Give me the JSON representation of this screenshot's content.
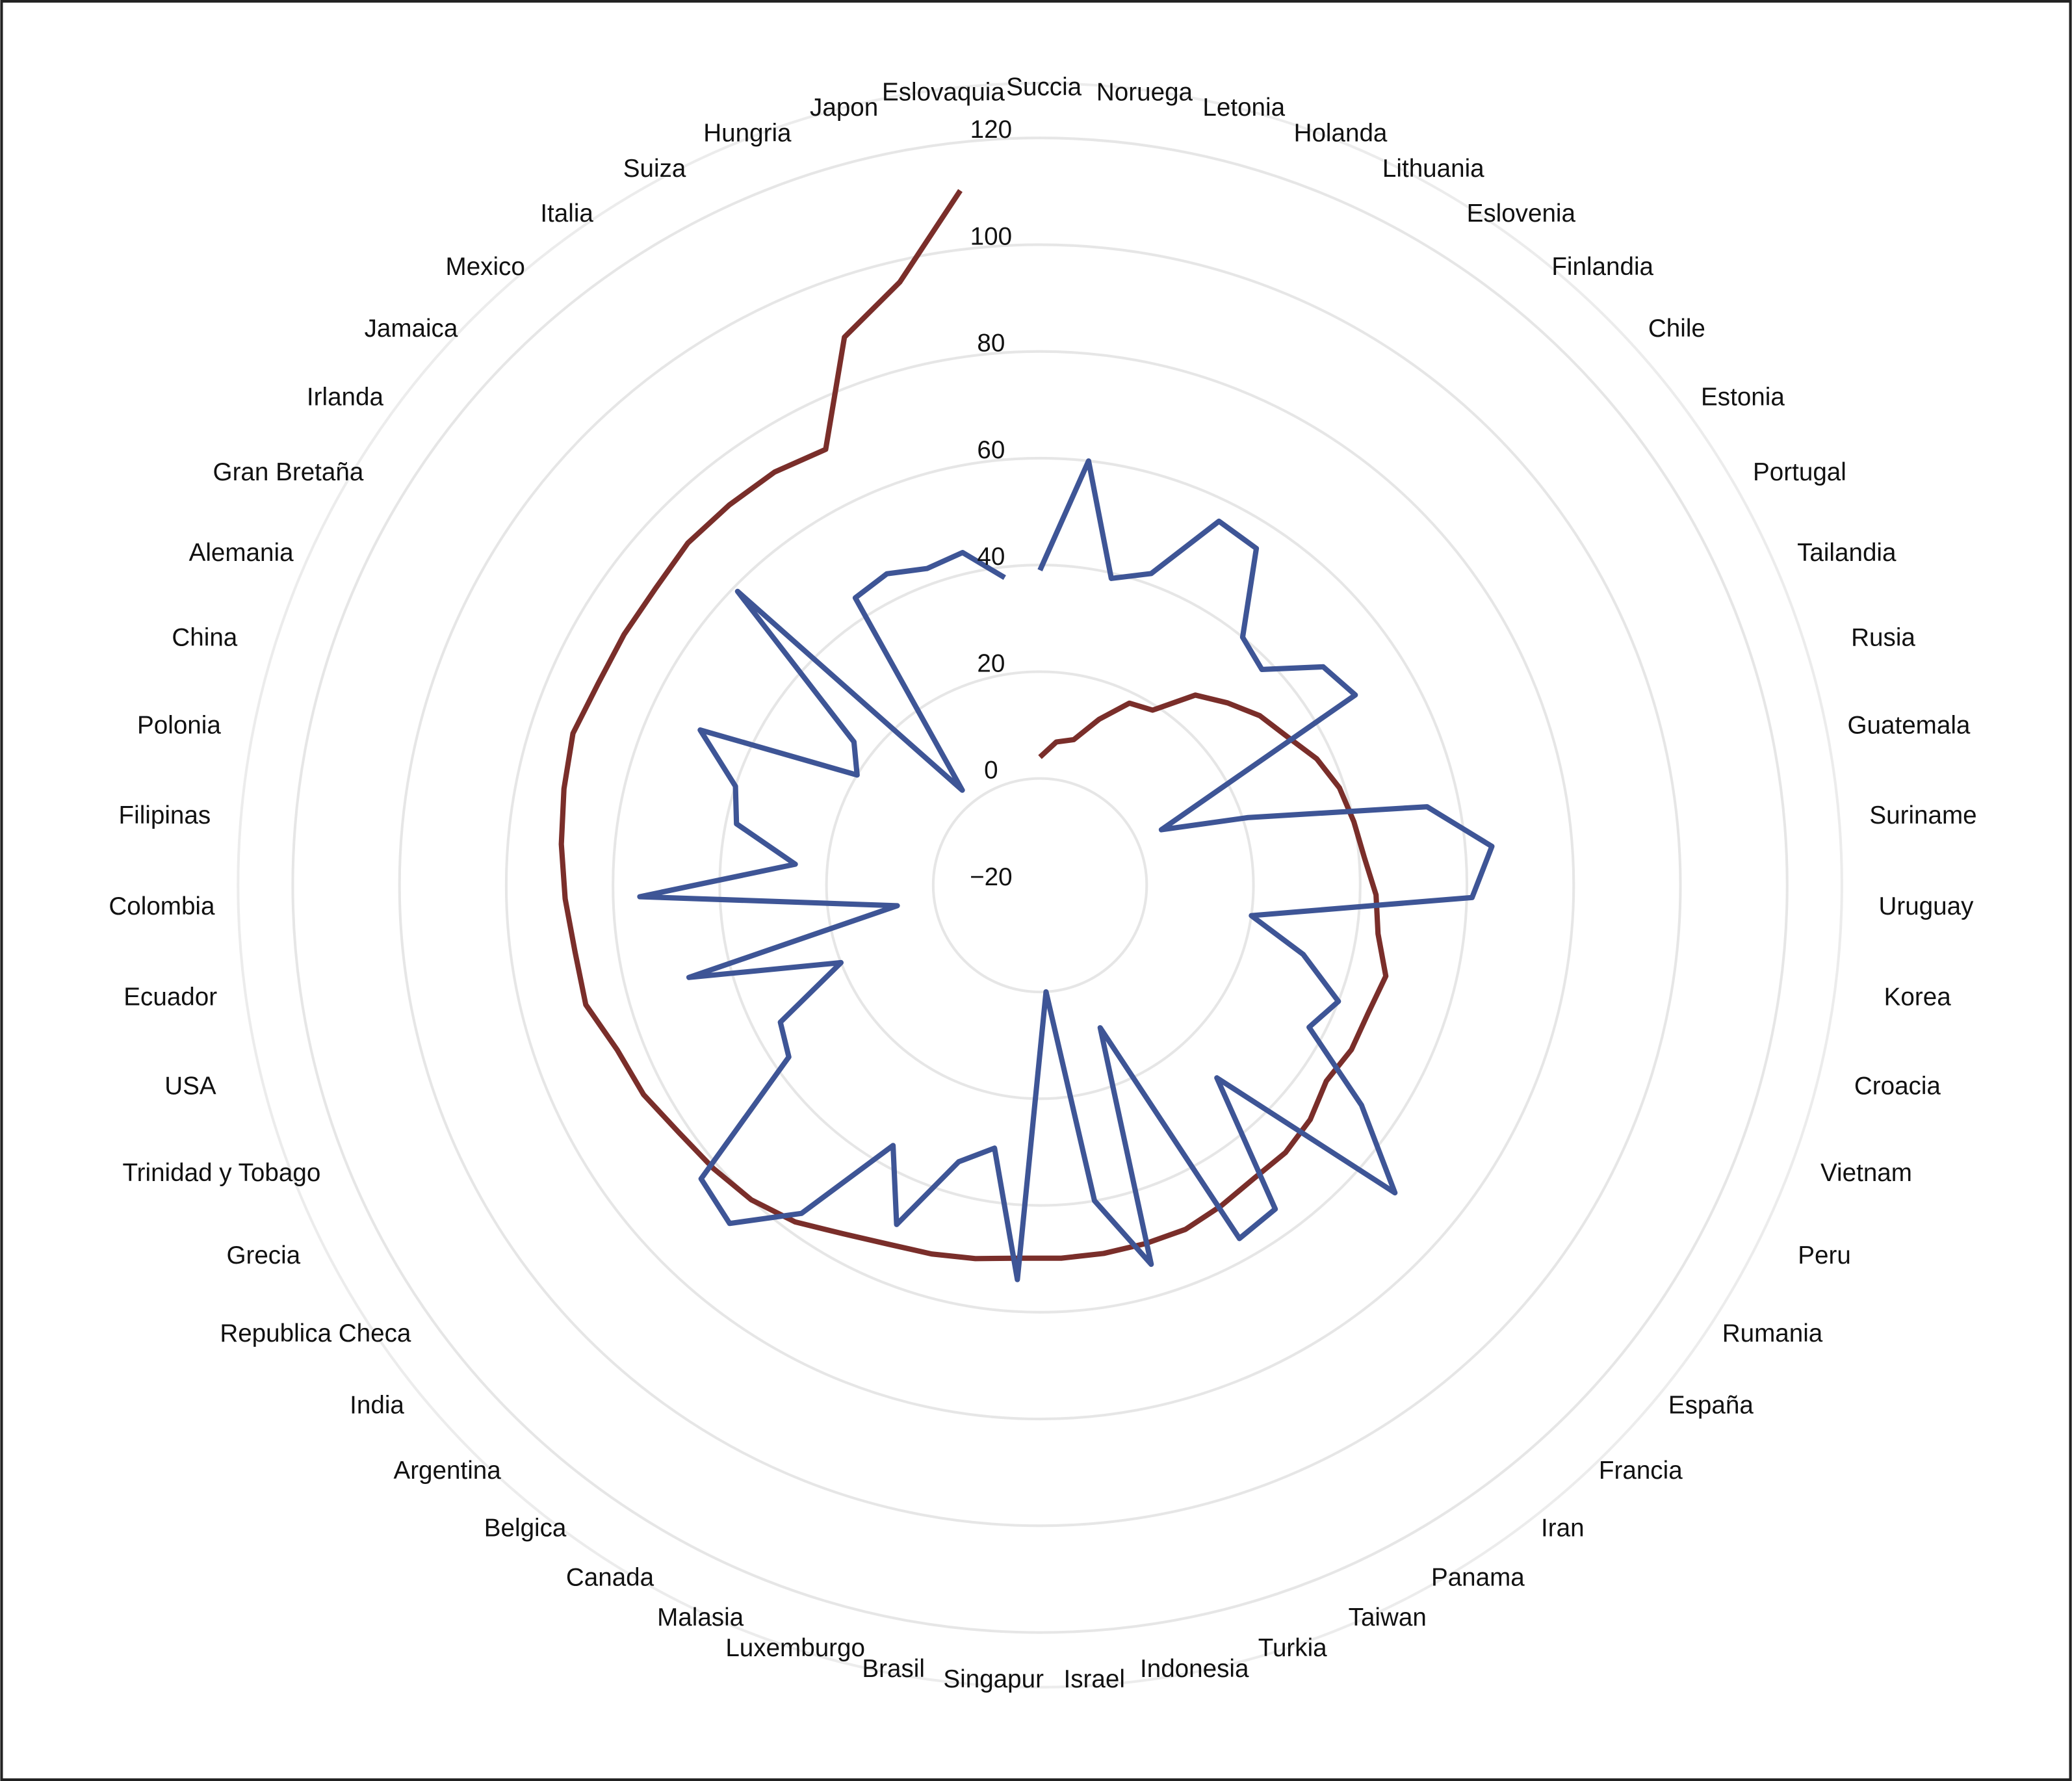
{
  "chart_data": {
    "type": "radar",
    "categories": [
      "Succia",
      "Noruega",
      "Letonia",
      "Holanda",
      "Lithuania",
      "Eslovenia",
      "Finlandia",
      "Chile",
      "Estonia",
      "Portugal",
      "Tailandia",
      "Rusia",
      "Guatemala",
      "Suriname",
      "Uruguay",
      "Korea",
      "Croacia",
      "Vietnam",
      "Peru",
      "Rumania",
      "España",
      "Francia",
      "Iran",
      "Panama",
      "Taiwan",
      "Turkia",
      "Indonesia",
      "Israel",
      "Singapur",
      "Brasil",
      "Luxemburgo",
      "Malasia",
      "Canada",
      "Belgica",
      "Argentina",
      "India",
      "Republica Checa",
      "Grecia",
      "Trinidad y Tobago",
      "USA",
      "Ecuador",
      "Colombia",
      "Filipinas",
      "Polonia",
      "China",
      "Alemania",
      "Gran Bretaña",
      "Irlanda",
      "Jamaica",
      "Mexico",
      "Italia",
      "Suiza",
      "Hungria",
      "Japon",
      "Eslovaquia"
    ],
    "series": [
      {
        "color": "#7a2e2a",
        "values": [
          4,
          7,
          8,
          13,
          18,
          19,
          26,
          29,
          32,
          34,
          37,
          39,
          40,
          41,
          43,
          44,
          47,
          46,
          46,
          45,
          47,
          48,
          48,
          49,
          50,
          50,
          50,
          50,
          50,
          51,
          52,
          53,
          55,
          58,
          60,
          61,
          62,
          64,
          65,
          68,
          68,
          69,
          70,
          71,
          72,
          71,
          71,
          71,
          72,
          72,
          72,
          71,
          89,
          96,
          111
        ]
      },
      {
        "color": "#3e5596",
        "values": [
          39,
          60,
          39,
          42,
          56,
          55,
          40,
          38,
          47,
          49,
          5,
          21,
          54,
          65,
          61,
          20,
          31,
          40,
          37,
          53,
          68,
          29,
          55,
          56,
          9,
          54,
          40,
          0,
          54,
          30,
          34,
          49,
          36,
          56,
          66,
          64,
          37,
          35,
          20,
          48,
          7,
          55,
          26,
          38,
          40,
          50,
          20,
          24,
          59,
          3,
          44,
          45,
          43,
          44,
          38
        ]
      }
    ],
    "ylim": [
      -20,
      120
    ],
    "yticks": [
      {
        "value": -20,
        "label": "−20"
      },
      0,
      20,
      40,
      60,
      80,
      100,
      120
    ],
    "grid": true
  }
}
